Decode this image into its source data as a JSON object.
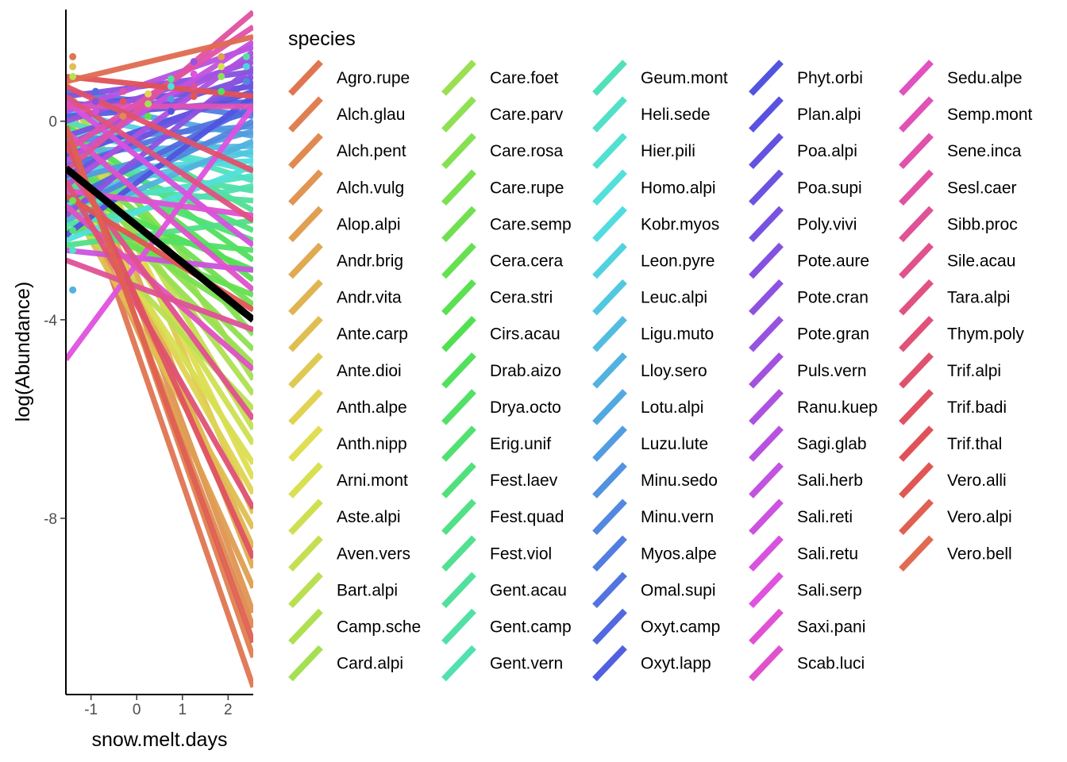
{
  "chart_data": {
    "type": "line",
    "xlabel": "snow.melt.days",
    "ylabel": "log(Abundance)",
    "x_ticks": [
      "-1",
      "0",
      "1",
      "2"
    ],
    "y_ticks": [
      "0",
      "-4",
      "-8"
    ],
    "xlim": [
      -1.55,
      2.55
    ],
    "ylim": [
      -11.55,
      2.25
    ],
    "grid": false,
    "legend_position": "right",
    "legend": {
      "title": "species",
      "entries": [
        "Agro.rupe",
        "Alch.glau",
        "Alch.pent",
        "Alch.vulg",
        "Alop.alpi",
        "Andr.brig",
        "Andr.vita",
        "Ante.carp",
        "Ante.dioi",
        "Anth.alpe",
        "Anth.nipp",
        "Arni.mont",
        "Aste.alpi",
        "Aven.vers",
        "Bart.alpi",
        "Camp.sche",
        "Card.alpi",
        "Care.foet",
        "Care.parv",
        "Care.rosa",
        "Care.rupe",
        "Care.semp",
        "Cera.cera",
        "Cera.stri",
        "Cirs.acau",
        "Drab.aizo",
        "Drya.octo",
        "Erig.unif",
        "Fest.laev",
        "Fest.quad",
        "Fest.viol",
        "Gent.acau",
        "Gent.camp",
        "Gent.vern",
        "Geum.mont",
        "Heli.sede",
        "Hier.pili",
        "Homo.alpi",
        "Kobr.myos",
        "Leon.pyre",
        "Leuc.alpi",
        "Ligu.muto",
        "Lloy.sero",
        "Lotu.alpi",
        "Luzu.lute",
        "Minu.sedo",
        "Minu.vern",
        "Myos.alpe",
        "Omal.supi",
        "Oxyt.camp",
        "Oxyt.lapp",
        "Phyt.orbi",
        "Plan.alpi",
        "Poa.alpi",
        "Poa.supi",
        "Poly.vivi",
        "Pote.aure",
        "Pote.cran",
        "Pote.gran",
        "Puls.vern",
        "Ranu.kuep",
        "Sagi.glab",
        "Sali.herb",
        "Sali.reti",
        "Sali.retu",
        "Sali.serp",
        "Saxi.pani",
        "Scab.luci",
        "Sedu.alpe",
        "Semp.mont",
        "Sene.inca",
        "Sesl.caer",
        "Sibb.proc",
        "Sile.acau",
        "Tara.alpi",
        "Thym.poly",
        "Trif.alpi",
        "Trif.badi",
        "Trif.thal",
        "Vero.alli",
        "Vero.alpi",
        "Vero.bell"
      ]
    },
    "overall_fit": {
      "name": "",
      "color": "#000000",
      "x": [
        -1.55,
        2.55
      ],
      "y": [
        -0.95,
        -4.0
      ]
    },
    "series_lines": [
      [
        -0.5,
        -11.4
      ],
      [
        0.0,
        -10.8
      ],
      [
        -0.3,
        -10.2
      ],
      [
        0.2,
        -9.9
      ],
      [
        -1.0,
        -9.4
      ],
      [
        0.5,
        -9.0
      ],
      [
        -0.2,
        -8.6
      ],
      [
        -1.5,
        -8.2
      ],
      [
        0.8,
        -7.9
      ],
      [
        -0.8,
        -7.5
      ],
      [
        0.3,
        -7.2
      ],
      [
        -1.2,
        -6.9
      ],
      [
        -0.6,
        -6.5
      ],
      [
        0.1,
        -6.2
      ],
      [
        -1.8,
        -5.8
      ],
      [
        -0.4,
        -5.5
      ],
      [
        0.6,
        -5.2
      ],
      [
        -1.1,
        -4.9
      ],
      [
        -0.9,
        -4.6
      ],
      [
        0.0,
        -4.3
      ],
      [
        -1.6,
        -4.0
      ],
      [
        -0.7,
        -3.7
      ],
      [
        -2.0,
        -3.5
      ],
      [
        -0.3,
        -3.2
      ],
      [
        -1.4,
        -3.0
      ],
      [
        -0.1,
        -2.8
      ],
      [
        -2.2,
        -2.6
      ],
      [
        -1.0,
        -2.4
      ],
      [
        -0.5,
        -2.2
      ],
      [
        -2.5,
        -2.0
      ],
      [
        0.3,
        -1.8
      ],
      [
        -1.3,
        -1.6
      ],
      [
        -0.8,
        -1.4
      ],
      [
        -2.1,
        -1.3
      ],
      [
        0.0,
        -1.2
      ],
      [
        -1.7,
        -1.1
      ],
      [
        -0.2,
        -1.0
      ],
      [
        -2.4,
        -0.9
      ],
      [
        -1.0,
        -0.8
      ],
      [
        0.2,
        -0.7
      ],
      [
        -1.5,
        -0.6
      ],
      [
        -0.6,
        -0.5
      ],
      [
        -2.0,
        -0.4
      ],
      [
        0.4,
        -0.3
      ],
      [
        -1.2,
        -0.2
      ],
      [
        -0.4,
        -0.1
      ],
      [
        -1.8,
        0.0
      ],
      [
        0.6,
        0.1
      ],
      [
        -0.9,
        0.2
      ],
      [
        -1.6,
        0.3
      ],
      [
        0.1,
        0.4
      ],
      [
        -2.3,
        0.5
      ],
      [
        -0.7,
        0.6
      ],
      [
        0.3,
        0.7
      ],
      [
        -1.1,
        0.8
      ],
      [
        -0.3,
        0.9
      ],
      [
        0.5,
        1.0
      ],
      [
        -1.9,
        1.1
      ],
      [
        0.0,
        1.2
      ],
      [
        -0.5,
        1.3
      ],
      [
        -1.3,
        1.4
      ],
      [
        0.2,
        1.5
      ],
      [
        -0.8,
        1.6
      ],
      [
        -2.6,
        -3.0
      ],
      [
        0.4,
        -2.5
      ],
      [
        -4.8,
        0.3
      ],
      [
        -1.4,
        -1.9
      ],
      [
        -0.2,
        -3.4
      ],
      [
        -1.7,
        -5.0
      ],
      [
        0.3,
        0.3
      ],
      [
        -0.6,
        1.9
      ],
      [
        -1.0,
        2.2
      ],
      [
        -2.8,
        -4.2
      ],
      [
        -0.9,
        -6.0
      ],
      [
        0.5,
        -2.0
      ],
      [
        -1.2,
        -7.8
      ],
      [
        0.7,
        -1.0
      ],
      [
        -0.4,
        -8.8
      ],
      [
        0.9,
        0.5
      ],
      [
        -1.5,
        -3.8
      ],
      [
        -0.1,
        -10.5
      ],
      [
        0.8,
        1.7
      ]
    ],
    "points": {
      "x": [
        -1.4,
        -1.4,
        -1.4,
        -1.4,
        -1.4,
        -1.4,
        -1.4,
        -0.9,
        -0.9,
        -0.9,
        -0.3,
        -0.3,
        -0.3,
        0.25,
        0.25,
        0.25,
        0.75,
        0.75,
        0.75,
        0.75,
        1.25,
        1.25,
        1.25,
        1.25,
        1.85,
        1.85,
        1.85,
        1.85,
        2.4,
        2.4,
        2.4
      ],
      "y": [
        1.3,
        1.1,
        0.9,
        -1.6,
        -2.2,
        -2.6,
        -3.4,
        0.6,
        0.4,
        0.2,
        0.6,
        0.4,
        0.1,
        0.55,
        0.35,
        0.1,
        0.85,
        0.7,
        0.45,
        0.2,
        1.2,
        0.95,
        0.7,
        0.5,
        1.3,
        1.1,
        0.9,
        0.6,
        1.3,
        1.1,
        0.8
      ]
    }
  }
}
